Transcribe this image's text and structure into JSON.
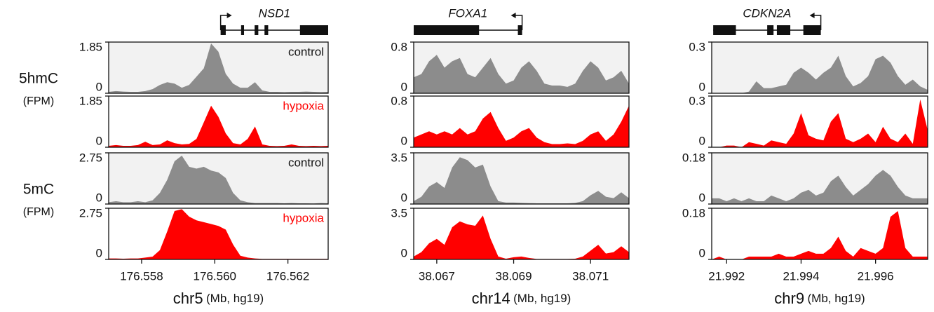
{
  "row_labels": [
    {
      "name": "5hmC",
      "unit": "(FPM)"
    },
    {
      "name": "5mC",
      "unit": "(FPM)"
    }
  ],
  "conditions": [
    {
      "name": "control",
      "color": "#111111"
    },
    {
      "name": "hypoxia",
      "color": "#ff0000"
    }
  ],
  "chart_data": [
    {
      "type": "area",
      "xlabel": "chr5",
      "xlabel_unit": "(Mb, hg19)",
      "gene": {
        "name": "NSD1",
        "strand": "+",
        "exons": [
          [
            176.56016,
            176.5603
          ],
          [
            176.56072,
            176.5608
          ],
          [
            176.56109,
            176.56119
          ],
          [
            176.56136,
            176.56146
          ],
          [
            176.56233,
            176.5631
          ]
        ]
      },
      "xlim": [
        176.5571,
        176.5631
      ],
      "xticks": [
        176.558,
        {
          "value": 176.56,
          "label": "176.560"
        },
        176.562
      ],
      "x": [
        176.5571,
        176.5573,
        176.5575,
        176.5577,
        176.5579,
        176.5581,
        176.5583,
        176.5585,
        176.5587,
        176.5589,
        176.5591,
        176.5593,
        176.5595,
        176.5597,
        176.5599,
        176.5601,
        176.5603,
        176.5605,
        176.5607,
        176.5609,
        176.5611,
        176.5613,
        176.5615,
        176.5617,
        176.5619,
        176.5621,
        176.5623,
        176.5625,
        176.5627,
        176.5629,
        176.5631
      ],
      "series": [
        {
          "color": "#8c8c8c",
          "ylim": [
            0,
            1.85
          ],
          "yticks": [
            0,
            1.85
          ],
          "values": [
            0.05,
            0.08,
            0.06,
            0.05,
            0.05,
            0.08,
            0.15,
            0.3,
            0.4,
            0.35,
            0.2,
            0.3,
            0.6,
            0.9,
            1.8,
            1.5,
            0.7,
            0.35,
            0.2,
            0.2,
            0.4,
            0.1,
            0.05,
            0.05,
            0.04,
            0.05,
            0.05,
            0.06,
            0.05,
            0.04,
            0.05
          ]
        },
        {
          "color": "#ff0000",
          "ylim": [
            0,
            1.85
          ],
          "yticks": [
            0,
            1.85
          ],
          "values": [
            0.05,
            0.08,
            0.05,
            0.05,
            0.08,
            0.2,
            0.08,
            0.1,
            0.25,
            0.15,
            0.1,
            0.12,
            0.3,
            0.9,
            1.5,
            1.1,
            0.5,
            0.15,
            0.1,
            0.3,
            0.75,
            0.1,
            0.05,
            0.04,
            0.05,
            0.1,
            0.05,
            0.04,
            0.05,
            0.04,
            0.05
          ]
        },
        {
          "color": "#8c8c8c",
          "ylim": [
            0,
            2.75
          ],
          "yticks": [
            0,
            2.75
          ],
          "values": [
            0.1,
            0.15,
            0.1,
            0.1,
            0.15,
            0.1,
            0.2,
            0.6,
            1.3,
            2.3,
            2.6,
            2.0,
            1.9,
            2.0,
            1.8,
            1.7,
            1.4,
            0.6,
            0.2,
            0.1,
            0.05,
            0.05,
            0.05,
            0.05,
            0.04,
            0.05,
            0.04,
            0.04,
            0.03,
            0.05,
            0.04
          ]
        },
        {
          "color": "#ff0000",
          "ylim": [
            0,
            2.75
          ],
          "yticks": [
            0,
            2.75
          ],
          "values": [
            0.05,
            0.05,
            0.04,
            0.05,
            0.05,
            0.1,
            0.15,
            0.5,
            1.5,
            2.6,
            2.7,
            2.3,
            2.1,
            2.0,
            1.9,
            1.8,
            1.6,
            0.8,
            0.2,
            0.1,
            0.05,
            0.03,
            0.03,
            0.03,
            0.03,
            0.03,
            0.03,
            0.03,
            0.03,
            0.03,
            0.03
          ]
        }
      ]
    },
    {
      "type": "area",
      "xlabel": "chr14",
      "xlabel_unit": "(Mb, hg19)",
      "gene": {
        "name": "FOXA1",
        "strand": "-",
        "exons": [
          [
            38.0664,
            38.0681
          ],
          [
            38.06911,
            38.06922
          ]
        ]
      },
      "xlim": [
        38.0664,
        38.072
      ],
      "xticks": [
        38.067,
        38.069,
        38.071
      ],
      "x": [
        38.0664,
        38.0666,
        38.0668,
        38.067,
        38.0672,
        38.0674,
        38.0676,
        38.0678,
        38.068,
        38.0682,
        38.0684,
        38.0686,
        38.0688,
        38.069,
        38.0692,
        38.0694,
        38.0696,
        38.0698,
        38.07,
        38.0702,
        38.0704,
        38.0706,
        38.0708,
        38.071,
        38.0712,
        38.0714,
        38.0716,
        38.0718,
        38.072
      ],
      "series": [
        {
          "color": "#8c8c8c",
          "ylim": [
            0,
            0.8
          ],
          "yticks": [
            0,
            0.8
          ],
          "values": [
            0.25,
            0.3,
            0.5,
            0.6,
            0.4,
            0.5,
            0.55,
            0.3,
            0.25,
            0.4,
            0.55,
            0.3,
            0.15,
            0.2,
            0.4,
            0.5,
            0.35,
            0.15,
            0.12,
            0.12,
            0.1,
            0.15,
            0.35,
            0.5,
            0.4,
            0.2,
            0.25,
            0.35,
            0.15
          ]
        },
        {
          "color": "#ff0000",
          "ylim": [
            0,
            0.8
          ],
          "yticks": [
            0,
            0.8
          ],
          "values": [
            0.15,
            0.2,
            0.25,
            0.2,
            0.25,
            0.2,
            0.3,
            0.2,
            0.25,
            0.45,
            0.55,
            0.3,
            0.1,
            0.15,
            0.25,
            0.3,
            0.15,
            0.08,
            0.05,
            0.05,
            0.06,
            0.05,
            0.1,
            0.2,
            0.25,
            0.1,
            0.2,
            0.4,
            0.65
          ]
        },
        {
          "color": "#8c8c8c",
          "ylim": [
            0,
            3.5
          ],
          "yticks": [
            0,
            3.5
          ],
          "values": [
            0.2,
            0.5,
            1.2,
            1.5,
            1.1,
            2.5,
            3.2,
            3.0,
            2.5,
            2.7,
            1.2,
            0.2,
            0.1,
            0.1,
            0.08,
            0.06,
            0.05,
            0.05,
            0.05,
            0.05,
            0.05,
            0.08,
            0.2,
            0.6,
            0.9,
            0.5,
            0.4,
            0.8,
            0.4
          ]
        },
        {
          "color": "#ff0000",
          "ylim": [
            0,
            3.5
          ],
          "yticks": [
            0,
            3.5
          ],
          "values": [
            0.2,
            0.5,
            1.1,
            1.4,
            1.0,
            2.2,
            2.6,
            2.4,
            2.3,
            3.0,
            1.4,
            0.2,
            0.05,
            0.15,
            0.2,
            0.1,
            0.03,
            0.03,
            0.03,
            0.03,
            0.03,
            0.05,
            0.2,
            0.6,
            1.0,
            0.4,
            0.5,
            0.9,
            0.5
          ]
        }
      ]
    },
    {
      "type": "area",
      "xlabel": "chr9",
      "xlabel_unit": "(Mb, hg19)",
      "gene": {
        "name": "CDKN2A",
        "strand": "-",
        "exons": [
          [
            21.99164,
            21.99225
          ],
          [
            21.99309,
            21.99326
          ],
          [
            21.99335,
            21.99371
          ],
          [
            21.99406,
            21.99453
          ]
        ]
      },
      "xlim": [
        21.9916,
        21.9974
      ],
      "xticks": [
        21.992,
        21.994,
        21.996
      ],
      "x": [
        21.9916,
        21.9918,
        21.992,
        21.9922,
        21.9924,
        21.9926,
        21.9928,
        21.993,
        21.9932,
        21.9934,
        21.9936,
        21.9938,
        21.994,
        21.9942,
        21.9944,
        21.9946,
        21.9948,
        21.995,
        21.9952,
        21.9954,
        21.9956,
        21.9958,
        21.996,
        21.9962,
        21.9964,
        21.9966,
        21.9968,
        21.997,
        21.9972,
        21.9974
      ],
      "series": [
        {
          "color": "#8c8c8c",
          "ylim": [
            0,
            0.3
          ],
          "yticks": [
            0,
            0.3
          ],
          "values": [
            0,
            0,
            0,
            0,
            0,
            0.01,
            0.07,
            0.03,
            0.03,
            0.04,
            0.05,
            0.12,
            0.15,
            0.12,
            0.08,
            0.12,
            0.15,
            0.22,
            0.1,
            0.04,
            0.06,
            0.1,
            0.2,
            0.22,
            0.18,
            0.1,
            0.05,
            0.08,
            0.04,
            0.02
          ]
        },
        {
          "color": "#ff0000",
          "ylim": [
            0,
            0.3
          ],
          "yticks": [
            0,
            0.3
          ],
          "values": [
            0,
            0,
            0.01,
            0.01,
            0,
            0.03,
            0.02,
            0.01,
            0.04,
            0.03,
            0.02,
            0.08,
            0.2,
            0.07,
            0.05,
            0.04,
            0.15,
            0.2,
            0.05,
            0.03,
            0.05,
            0.08,
            0.03,
            0.12,
            0.05,
            0.03,
            0.08,
            0.02,
            0.28,
            0.1
          ]
        },
        {
          "color": "#8c8c8c",
          "ylim": [
            0,
            0.18
          ],
          "yticks": [
            0,
            0.18
          ],
          "values": [
            0.02,
            0.02,
            0.01,
            0.02,
            0.01,
            0.02,
            0.01,
            0.01,
            0.03,
            0.02,
            0.01,
            0.02,
            0.04,
            0.05,
            0.03,
            0.04,
            0.08,
            0.1,
            0.06,
            0.03,
            0.05,
            0.07,
            0.1,
            0.12,
            0.1,
            0.06,
            0.03,
            0.02,
            0.02,
            0.02
          ]
        },
        {
          "color": "#ff0000",
          "ylim": [
            0,
            0.18
          ],
          "yticks": [
            0,
            0.18
          ],
          "values": [
            0,
            0.01,
            0,
            0,
            0,
            0.01,
            0.01,
            0.01,
            0.01,
            0.02,
            0.01,
            0.01,
            0.02,
            0.03,
            0.02,
            0.02,
            0.04,
            0.08,
            0.03,
            0.01,
            0.04,
            0.03,
            0.02,
            0.04,
            0.15,
            0.17,
            0.04,
            0.01,
            0.01,
            0.01
          ]
        }
      ]
    }
  ]
}
